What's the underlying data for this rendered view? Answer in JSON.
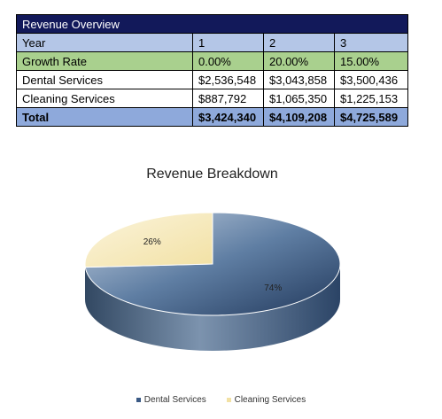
{
  "table": {
    "title": "Revenue Overview",
    "header": [
      "Year",
      "1",
      "2",
      "3"
    ],
    "rows": [
      {
        "label": "Growth Rate",
        "values": [
          "0.00%",
          "20.00%",
          "15.00%"
        ]
      },
      {
        "label": "Dental Services",
        "values": [
          "$2,536,548",
          "$3,043,858",
          "$3,500,436"
        ]
      },
      {
        "label": "Cleaning Services",
        "values": [
          "$887,792",
          "$1,065,350",
          "$1,225,153"
        ]
      }
    ],
    "total": {
      "label": "Total",
      "values": [
        "$3,424,340",
        "$4,109,208",
        "$4,725,589"
      ]
    }
  },
  "chart_data": {
    "type": "pie",
    "title": "Revenue Breakdown",
    "categories": [
      "Dental Services",
      "Cleaning Services"
    ],
    "values": [
      74,
      26
    ],
    "labels": [
      "74%",
      "26%"
    ],
    "colors": [
      "#2f4b73",
      "#f6e9b8"
    ],
    "style": "3d",
    "legend": "bottom"
  }
}
